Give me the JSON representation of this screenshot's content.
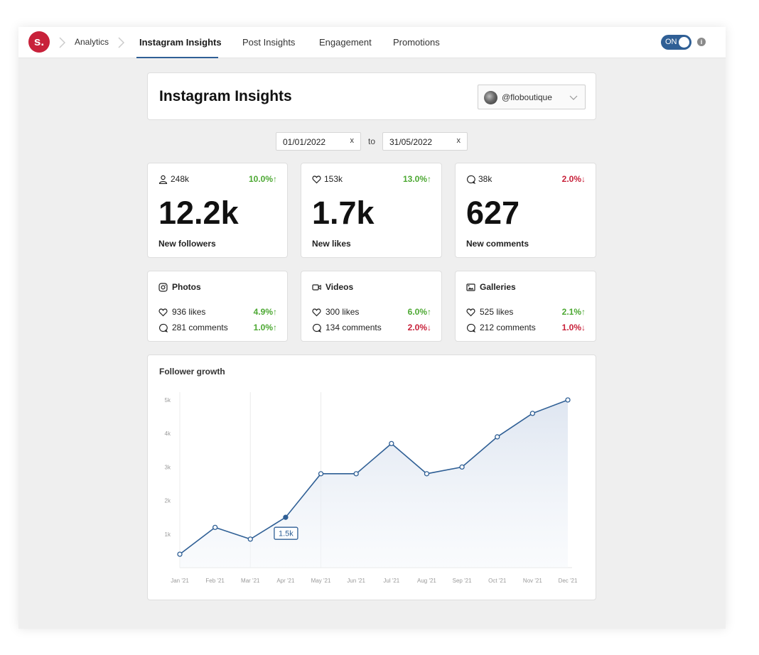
{
  "nav": {
    "logo": "s.",
    "breadcrumb": "Analytics",
    "tabs": [
      {
        "label": "Instagram Insights",
        "active": true
      },
      {
        "label": "Post Insights"
      },
      {
        "label": "Engagement"
      },
      {
        "label": "Promotions"
      }
    ],
    "toggle_label": "ON",
    "info_glyph": "i"
  },
  "header": {
    "title": "Instagram Insights",
    "account": "@floboutique"
  },
  "date_range": {
    "from": "01/01/2022",
    "to": "31/05/2022",
    "separator": "to",
    "clear": "x"
  },
  "stats": [
    {
      "icon": "user-icon",
      "total": "248k",
      "change": "10.0%",
      "direction": "up",
      "value": "12.2k",
      "label": "New followers"
    },
    {
      "icon": "heart-icon",
      "total": "153k",
      "change": "13.0%",
      "direction": "up",
      "value": "1.7k",
      "label": "New likes"
    },
    {
      "icon": "comment-icon",
      "total": "38k",
      "change": "2.0%",
      "direction": "down",
      "value": "627",
      "label": "New comments"
    }
  ],
  "post_types": [
    {
      "icon": "instagram-icon",
      "title": "Photos",
      "likes": "936 likes",
      "likes_change": "4.9%",
      "likes_dir": "up",
      "comments": "281 comments",
      "comments_change": "1.0%",
      "comments_dir": "up"
    },
    {
      "icon": "video-icon",
      "title": "Videos",
      "likes": "300 likes",
      "likes_change": "6.0%",
      "likes_dir": "up",
      "comments": "134 comments",
      "comments_change": "2.0%",
      "comments_dir": "down"
    },
    {
      "icon": "gallery-icon",
      "title": "Galleries",
      "likes": "525 likes",
      "likes_change": "2.1%",
      "likes_dir": "up",
      "comments": "212 comments",
      "comments_change": "1.0%",
      "comments_dir": "down"
    }
  ],
  "colors": {
    "accent": "#2f5f95",
    "up": "#4ca832",
    "down": "#c8213a",
    "brand": "#c8213a"
  },
  "chart_data": {
    "type": "area",
    "title": "Follower growth",
    "x": [
      "Jan '21",
      "Feb '21",
      "Mar '21",
      "Apr '21",
      "May '21",
      "Jun '21",
      "Jul '21",
      "Aug '21",
      "Sep '21",
      "Oct '21",
      "Nov '21",
      "Dec '21"
    ],
    "y_ticks": [
      "1k",
      "2k",
      "3k",
      "4k",
      "5k"
    ],
    "ylim": [
      0,
      5000
    ],
    "series": [
      {
        "values": [
          400,
          1200,
          850,
          1500,
          2800,
          2800,
          3700,
          2800,
          3000,
          3900,
          4600,
          5000
        ]
      }
    ],
    "highlight": {
      "index": 3,
      "label": "1.5k"
    },
    "grid": "vertical",
    "legend": "none"
  }
}
